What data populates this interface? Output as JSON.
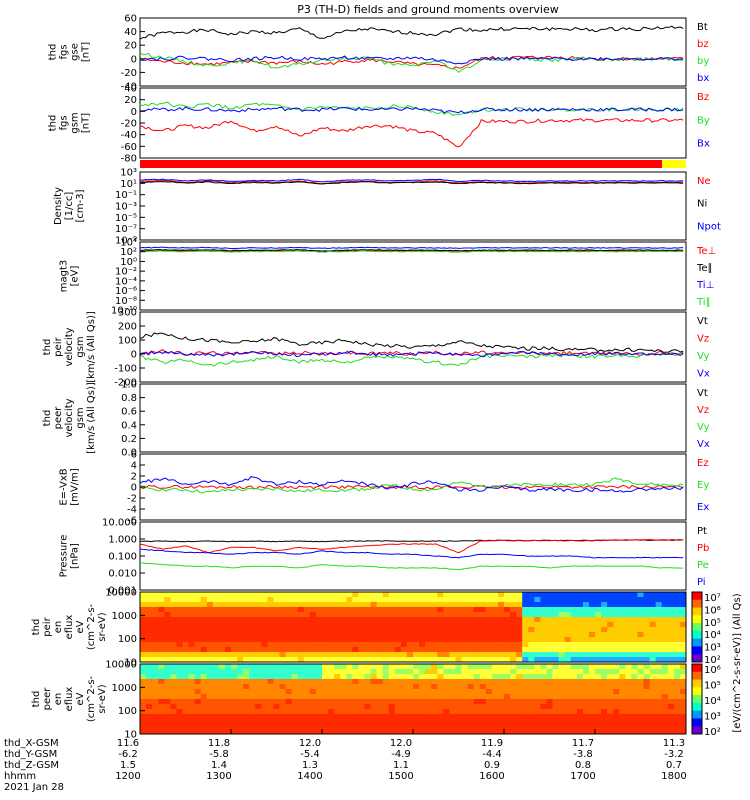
{
  "title": "P3 (TH-D) fields and ground moments overview",
  "colors": {
    "black": "#000000",
    "red": "#ff0000",
    "green": "#22dd22",
    "blue": "#0000ff",
    "bar_red": "#ff0000",
    "bar_yellow": "#ffff00"
  },
  "chart_data": [
    {
      "panel": "fgs_gse",
      "type": "line",
      "ylabel": [
        "thd",
        "fgs",
        "gse",
        "[nT]"
      ],
      "ylim": [
        -40,
        60
      ],
      "yticks": [
        "60",
        "40",
        "20",
        "0",
        "-20",
        "-40"
      ],
      "series": [
        {
          "name": "Bt",
          "color": "black",
          "values": [
            30,
            38,
            40,
            42,
            36,
            40,
            38,
            44,
            30,
            40,
            44,
            40,
            38,
            36,
            44,
            42,
            44,
            44,
            44,
            44,
            42,
            44,
            44,
            46,
            46
          ]
        },
        {
          "name": "bz",
          "color": "red",
          "values": [
            0,
            -4,
            -6,
            -8,
            -6,
            -4,
            -6,
            -4,
            -8,
            -4,
            -2,
            -4,
            -8,
            -10,
            -14,
            0,
            2,
            2,
            2,
            2,
            0,
            0,
            0,
            0,
            0
          ]
        },
        {
          "name": "by",
          "color": "green",
          "values": [
            8,
            2,
            -4,
            -10,
            -6,
            -2,
            -14,
            -8,
            -2,
            0,
            2,
            -8,
            -10,
            -2,
            -20,
            -2,
            0,
            0,
            -2,
            0,
            0,
            -2,
            0,
            0,
            0
          ]
        },
        {
          "name": "bx",
          "color": "blue",
          "values": [
            0,
            0,
            2,
            0,
            -2,
            0,
            2,
            0,
            0,
            2,
            0,
            0,
            2,
            -2,
            -6,
            0,
            0,
            0,
            0,
            0,
            0,
            0,
            0,
            0,
            0
          ]
        }
      ]
    },
    {
      "panel": "fgs_gsm",
      "type": "line",
      "ylabel": [
        "thd",
        "fgs",
        "gsm",
        "[nT]"
      ],
      "ylim": [
        -90,
        40
      ],
      "yticks": [
        "40",
        "20",
        "0",
        "-20",
        "-40",
        "-60",
        "-80"
      ],
      "series": [
        {
          "name": "Bz",
          "color": "red",
          "values": [
            -30,
            -40,
            -30,
            -34,
            -20,
            -40,
            -30,
            -50,
            -34,
            -40,
            -30,
            -30,
            -40,
            -44,
            -70,
            -22,
            -22,
            -22,
            -20,
            -20,
            -20,
            -20,
            -20,
            -20,
            -20
          ]
        },
        {
          "name": "By",
          "color": "green",
          "values": [
            8,
            12,
            4,
            10,
            2,
            10,
            6,
            0,
            4,
            2,
            2,
            6,
            4,
            -4,
            -10,
            0,
            0,
            0,
            0,
            0,
            0,
            0,
            0,
            0,
            0
          ]
        },
        {
          "name": "Bx",
          "color": "blue",
          "values": [
            0,
            0,
            2,
            0,
            -2,
            0,
            2,
            0,
            0,
            2,
            0,
            0,
            2,
            -2,
            -6,
            0,
            0,
            0,
            0,
            0,
            0,
            0,
            0,
            0,
            0
          ]
        }
      ]
    },
    {
      "panel": "density",
      "type": "line",
      "log": true,
      "ylabel": [
        "Density",
        "[1/cc]",
        "[cm-3]"
      ],
      "ylim_exp": [
        -10,
        3
      ],
      "yticks": [
        "10³",
        "10¹",
        "10⁻¹",
        "10⁻³",
        "10⁻⁵",
        "10⁻⁷",
        "10⁻⁹"
      ],
      "series": [
        {
          "name": "Ne",
          "color": "red",
          "values": [
            1.2,
            1.4,
            1.0,
            1.3,
            0.9,
            1.2,
            1.0,
            1.3,
            0.8,
            1.1,
            1.2,
            1.0,
            1.1,
            1.3,
            0.9,
            1.1,
            1.0,
            0.9,
            1.0,
            1.0,
            1.0,
            1.0,
            1.0,
            1.0,
            1.0
          ]
        },
        {
          "name": "Ni",
          "color": "black",
          "values": [
            1.0,
            1.2,
            0.9,
            1.1,
            0.8,
            1.0,
            0.9,
            1.1,
            0.7,
            1.0,
            1.1,
            0.9,
            1.0,
            1.1,
            0.8,
            1.0,
            0.9,
            0.8,
            0.9,
            0.9,
            0.9,
            0.9,
            0.9,
            0.9,
            0.9
          ]
        },
        {
          "name": "Npot",
          "color": "blue",
          "values": [
            1.5,
            1.6,
            1.3,
            1.5,
            1.2,
            1.4,
            1.3,
            1.6,
            1.1,
            1.4,
            1.5,
            1.3,
            1.4,
            1.6,
            1.2,
            1.4,
            1.3,
            1.2,
            1.3,
            1.3,
            1.3,
            1.3,
            1.3,
            1.3,
            1.3
          ]
        }
      ]
    },
    {
      "panel": "temperature",
      "type": "line",
      "log": true,
      "ylabel": [
        "magt3",
        "[eV]"
      ],
      "ylim_exp": [
        -10,
        5
      ],
      "yticks": [
        "10⁴",
        "10²",
        "10⁰",
        "10⁻²",
        "10⁻⁴",
        "10⁻⁶",
        "10⁻⁸",
        "10⁻¹⁰"
      ],
      "series": [
        {
          "name": "Te⊥",
          "color": "red",
          "values": [
            3.0,
            3.1,
            3.0,
            3.2,
            3.0,
            3.1,
            3.0,
            3.1,
            2.9,
            3.0,
            3.1,
            3.0,
            3.1,
            3.0,
            3.0,
            3.0,
            3.0,
            3.0,
            3.0,
            3.0,
            3.0,
            3.0,
            3.0,
            3.0,
            3.0
          ]
        },
        {
          "name": "Te∥",
          "color": "black",
          "values": [
            3.2,
            3.3,
            3.2,
            3.3,
            3.1,
            3.2,
            3.2,
            3.3,
            3.0,
            3.2,
            3.3,
            3.2,
            3.2,
            3.2,
            3.1,
            3.2,
            3.2,
            3.2,
            3.2,
            3.2,
            3.2,
            3.2,
            3.2,
            3.2,
            3.2
          ]
        },
        {
          "name": "Ti⊥",
          "color": "blue",
          "values": [
            3.7,
            3.8,
            3.7,
            3.8,
            3.6,
            3.7,
            3.7,
            3.8,
            3.6,
            3.7,
            3.8,
            3.7,
            3.7,
            3.7,
            3.6,
            3.7,
            3.7,
            3.7,
            3.7,
            3.7,
            3.7,
            3.7,
            3.7,
            3.7,
            3.7
          ]
        },
        {
          "name": "Ti∥",
          "color": "green",
          "values": [
            2.9,
            3.0,
            2.9,
            3.0,
            2.8,
            2.9,
            2.9,
            3.0,
            2.8,
            2.9,
            3.0,
            2.9,
            2.9,
            2.9,
            2.8,
            2.9,
            2.9,
            2.9,
            2.9,
            2.9,
            2.9,
            2.9,
            2.9,
            2.9,
            2.9
          ]
        }
      ]
    },
    {
      "panel": "peir_velocity",
      "type": "line",
      "ylabel": [
        "thd",
        "peir",
        "velocity",
        "gsm",
        "[km/s (All Qs)]"
      ],
      "ylim": [
        -200,
        300
      ],
      "yticks": [
        "300",
        "200",
        "100",
        "0",
        "-100",
        "-200"
      ],
      "series": [
        {
          "name": "Vt",
          "color": "black",
          "values": [
            120,
            150,
            110,
            100,
            80,
            90,
            110,
            70,
            80,
            100,
            70,
            60,
            50,
            60,
            90,
            60,
            50,
            40,
            40,
            30,
            30,
            30,
            30,
            20,
            20
          ]
        },
        {
          "name": "Vz",
          "color": "red",
          "values": [
            10,
            20,
            0,
            10,
            0,
            20,
            0,
            10,
            0,
            10,
            0,
            10,
            0,
            10,
            0,
            10,
            0,
            10,
            0,
            10,
            0,
            10,
            0,
            10,
            0
          ]
        },
        {
          "name": "Vy",
          "color": "green",
          "values": [
            -20,
            -60,
            -40,
            -80,
            -60,
            -40,
            -20,
            -60,
            -40,
            -60,
            -30,
            -20,
            -40,
            -60,
            -80,
            -20,
            -10,
            -20,
            -10,
            -10,
            -20,
            -10,
            -10,
            0,
            0
          ]
        },
        {
          "name": "Vx",
          "color": "blue",
          "values": [
            0,
            10,
            0,
            -10,
            0,
            10,
            0,
            -10,
            0,
            10,
            0,
            -10,
            0,
            10,
            0,
            -10,
            0,
            10,
            0,
            0,
            0,
            0,
            0,
            0,
            0
          ]
        }
      ]
    },
    {
      "panel": "peer_velocity",
      "type": "line",
      "ylabel": [
        "thd",
        "peer",
        "velocity",
        "gsm",
        "[km/s (All Qs)]"
      ],
      "ylim": [
        -200,
        300
      ],
      "yticks": [
        "1.0",
        "0.8",
        "0.6",
        "0.4",
        "0.2",
        "0.0"
      ],
      "series": [
        {
          "name": "Vt",
          "color": "black",
          "values": []
        },
        {
          "name": "Vz",
          "color": "red",
          "values": []
        },
        {
          "name": "Vy",
          "color": "green",
          "values": []
        },
        {
          "name": "Vx",
          "color": "blue",
          "values": []
        }
      ]
    },
    {
      "panel": "efield",
      "type": "line",
      "ylabel": [
        "E=-VxB",
        "[mV/m]"
      ],
      "ylim": [
        -6,
        6
      ],
      "yticks": [
        "6",
        "4",
        "2",
        "0",
        "-2",
        "-4",
        "-6"
      ],
      "series": [
        {
          "name": "Ez",
          "color": "red",
          "values": [
            0,
            0,
            0,
            0,
            0,
            0,
            0,
            0,
            0,
            0,
            0,
            0,
            0,
            0,
            0,
            0,
            0,
            0,
            0,
            0,
            0,
            0,
            0,
            0,
            0
          ]
        },
        {
          "name": "Ey",
          "color": "green",
          "values": [
            0,
            -0.5,
            -0.5,
            -1,
            -0.5,
            -0.5,
            -0.3,
            -0.8,
            -0.5,
            -0.6,
            -0.3,
            0.3,
            -0.4,
            -0.5,
            0.8,
            0.3,
            0.2,
            0.4,
            0.5,
            0.4,
            0.5,
            1.5,
            0.6,
            0.4,
            0.3
          ]
        },
        {
          "name": "Ex",
          "color": "blue",
          "values": [
            0.8,
            1.5,
            0.5,
            1.0,
            0.5,
            1.8,
            0.4,
            1.0,
            0.4,
            1.2,
            0.5,
            -0.4,
            0.6,
            1.0,
            -0.6,
            -0.5,
            0.0,
            -0.6,
            -0.4,
            -0.6,
            -0.5,
            -0.8,
            -0.4,
            -0.3,
            -0.2
          ]
        }
      ]
    },
    {
      "panel": "pressure",
      "type": "line",
      "log": true,
      "ylabel": [
        "Pressure",
        "[nPa]"
      ],
      "ylim_exp": [
        -3,
        1
      ],
      "yticks": [
        "10.000",
        "1.000",
        "0.100",
        "0.010",
        "0.001"
      ],
      "series": [
        {
          "name": "Pt",
          "color": "black",
          "values": [
            -0.15,
            -0.12,
            -0.15,
            -0.12,
            -0.15,
            -0.12,
            -0.15,
            -0.12,
            -0.15,
            -0.12,
            -0.12,
            -0.12,
            -0.12,
            -0.12,
            -0.12,
            -0.08,
            -0.08,
            -0.08,
            -0.08,
            -0.08,
            -0.08,
            -0.06,
            -0.06,
            -0.06,
            -0.06
          ]
        },
        {
          "name": "Pb",
          "color": "red",
          "values": [
            -0.3,
            -0.6,
            -0.4,
            -0.8,
            -0.5,
            -0.5,
            -0.7,
            -0.5,
            -0.6,
            -0.5,
            -0.4,
            -0.3,
            -0.3,
            -0.3,
            -0.8,
            -0.1,
            -0.1,
            -0.1,
            -0.1,
            -0.1,
            -0.1,
            -0.05,
            -0.05,
            -0.05,
            -0.05
          ]
        },
        {
          "name": "Pe",
          "color": "green",
          "values": [
            -1.4,
            -1.5,
            -1.6,
            -1.6,
            -1.7,
            -1.6,
            -1.6,
            -1.7,
            -1.5,
            -1.6,
            -1.6,
            -1.7,
            -1.7,
            -1.7,
            -1.8,
            -1.6,
            -1.6,
            -1.6,
            -1.7,
            -1.6,
            -1.6,
            -1.6,
            -1.6,
            -1.7,
            -1.7
          ]
        },
        {
          "name": "Pi",
          "color": "blue",
          "values": [
            -0.6,
            -0.7,
            -0.8,
            -0.8,
            -0.9,
            -0.8,
            -0.8,
            -0.9,
            -0.7,
            -0.8,
            -0.8,
            -0.9,
            -0.9,
            -1.0,
            -1.1,
            -0.9,
            -0.9,
            -1.0,
            -1.0,
            -1.0,
            -1.1,
            -1.1,
            -1.1,
            -1.1,
            -1.1
          ]
        }
      ]
    },
    {
      "panel": "peir_spectrogram",
      "type": "heatmap",
      "ylabel": [
        "thd",
        "peir",
        "en",
        "eflux",
        "eV",
        "(cm^2-s-",
        "sr-eV)"
      ],
      "yticks": [
        "10000",
        "1000",
        "100",
        "10"
      ]
    },
    {
      "panel": "peer_spectrogram",
      "type": "heatmap",
      "ylabel": [
        "thd",
        "peer",
        "en",
        "eflux",
        "eV",
        "(cm^2-s-",
        "sr-eV)"
      ],
      "yticks": [
        "10000",
        "1000",
        "100",
        "10"
      ]
    }
  ],
  "colorbar": {
    "label": "[eV/(cm^2-s-sr-eV)] (All Qs)",
    "top_ticks": [
      "10⁷",
      "10⁶",
      "10⁵",
      "10⁴",
      "10³",
      "10²"
    ],
    "bottom_ticks": [
      "10⁶",
      "10⁵",
      "10⁴",
      "10³",
      "10²"
    ]
  },
  "xaxis": {
    "rows": [
      {
        "label": "thd_X-GSM",
        "values": [
          "11.6",
          "11.8",
          "12.0",
          "12.0",
          "11.9",
          "11.7",
          "11.3"
        ]
      },
      {
        "label": "thd_Y-GSM",
        "values": [
          "-6.2",
          "-5.8",
          "-5.4",
          "-4.9",
          "-4.4",
          "-3.8",
          "-3.2"
        ]
      },
      {
        "label": "thd_Z-GSM",
        "values": [
          "1.5",
          "1.4",
          "1.3",
          "1.1",
          "0.9",
          "0.8",
          "0.7"
        ]
      },
      {
        "label": "hhmm",
        "values": [
          "1200",
          "1300",
          "1400",
          "1500",
          "1600",
          "1700",
          "1800"
        ]
      }
    ],
    "date": "2021 Jan 28"
  }
}
